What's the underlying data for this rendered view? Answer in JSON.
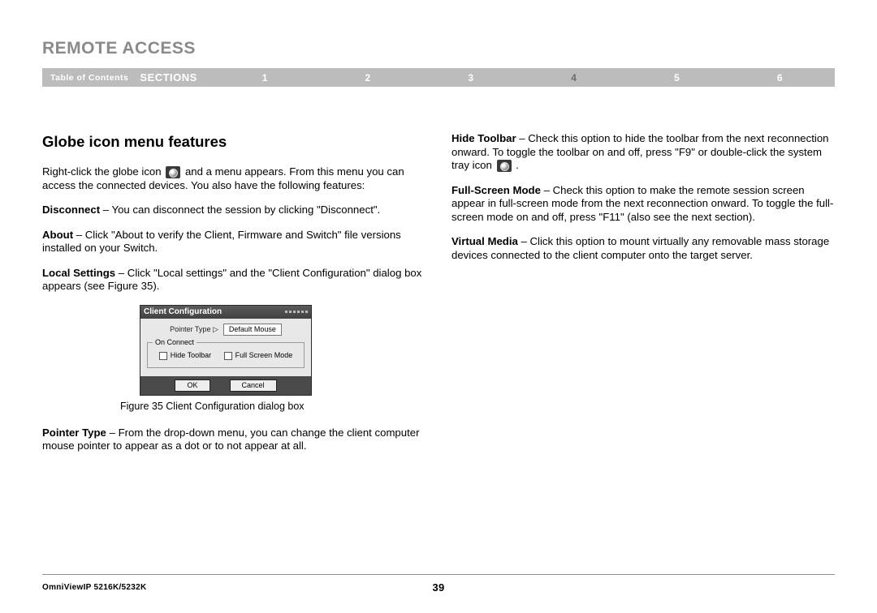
{
  "header": {
    "title": "REMOTE ACCESS"
  },
  "nav": {
    "toc": "Table of Contents",
    "sections_label": "SECTIONS",
    "items": [
      "1",
      "2",
      "3",
      "4",
      "5",
      "6"
    ],
    "active_index": 3
  },
  "left": {
    "heading": "Globe icon menu features",
    "intro_a": "Right-click the globe icon ",
    "intro_b": " and a menu appears. From this menu you can access the connected devices. You also have the following features:",
    "disconnect_term": "Disconnect",
    "disconnect_body": " – You can disconnect the session by clicking \"Disconnect\".",
    "about_term": "About",
    "about_body": " – Click \"About to verify the Client, Firmware and Switch\" file versions installed on your Switch.",
    "local_term": "Local Settings",
    "local_body": " – Click \"Local settings\" and the \"Client Configuration\" dialog box appears (see Figure 35).",
    "fig_caption": "Figure 35 Client Configuration dialog box",
    "pointer_term": "Pointer Type",
    "pointer_body": " – From the drop-down menu, you can change the client computer mouse pointer to appear as a dot or to not appear at all."
  },
  "dialog": {
    "title": "Client Configuration",
    "pointer_label": "Pointer Type ▷",
    "pointer_value": "Default Mouse",
    "group_label": "On Connect",
    "chk1": "Hide Toolbar",
    "chk2": "Full Screen Mode",
    "ok": "OK",
    "cancel": "Cancel"
  },
  "right": {
    "hide_term": "Hide Toolbar",
    "hide_body_a": " – Check this option to hide the toolbar from the next reconnection onward. To toggle the toolbar on and off, press \"F9\" or double-click the system tray icon ",
    "hide_body_b": " .",
    "full_term": "Full-Screen Mode",
    "full_body": " – Check this option to make the remote session screen appear in full-screen mode from the next reconnection onward. To toggle the full-screen mode on and off, press \"F11\" (also see the next section).",
    "vm_term": "Virtual Media",
    "vm_body": " – Click this option to mount virtually any removable mass storage devices connected to the client computer onto the target server."
  },
  "footer": {
    "model": "OmniViewIP 5216K/5232K",
    "page": "39"
  }
}
